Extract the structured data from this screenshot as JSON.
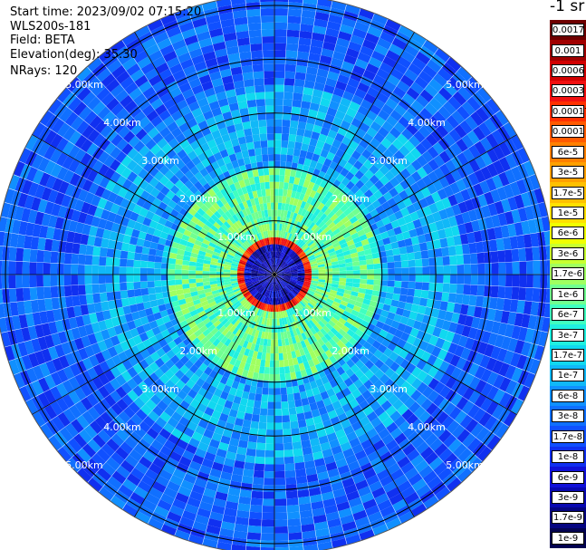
{
  "header": {
    "start_time": "Start time: 2023/09/02 07:15:20",
    "instrument": "WLS200s-181",
    "field": "Field: BETA",
    "elevation": "Elevation(deg): 35.30",
    "nrays": "NRays: 120"
  },
  "colorbar": {
    "title": "-1 sr",
    "ticks": [
      "0.0017",
      "0.001",
      "0.0006",
      "0.0003",
      "0.00017",
      "0.0001",
      "6e-5",
      "3e-5",
      "1.7e-5",
      "1e-5",
      "6e-6",
      "3e-6",
      "1.7e-6",
      "1e-6",
      "6e-7",
      "3e-7",
      "1.7e-7",
      "1e-7",
      "6e-8",
      "3e-8",
      "1.7e-8",
      "1e-8",
      "6e-9",
      "3e-9",
      "1.7e-9",
      "1e-9"
    ],
    "colors": [
      "#6e0000",
      "#a00000",
      "#d00000",
      "#f01010",
      "#ff3000",
      "#ff5a00",
      "#ff8000",
      "#ffa000",
      "#ffc000",
      "#ffe000",
      "#f0ff00",
      "#c8ff30",
      "#a0ff60",
      "#70ff90",
      "#40ffc0",
      "#20f0e0",
      "#10d8f0",
      "#10b8f8",
      "#1090ff",
      "#1070ff",
      "#1050ff",
      "#1030f0",
      "#1010d8",
      "#0808b0",
      "#040480",
      "#020250"
    ]
  },
  "chart_data": {
    "type": "heatmap",
    "title": "",
    "projection": "PPI polar (plan position indicator)",
    "field": "BETA",
    "units": "-1 sr",
    "nrays": 120,
    "elevation_deg": 35.3,
    "range_rings_km": [
      1,
      2,
      3,
      4,
      5
    ],
    "range_labels": [
      "1.00km",
      "2.00km",
      "3.00km",
      "4.00km",
      "5.00km"
    ],
    "max_range_km": 5.2,
    "color_scale": "log",
    "vmin": 1e-09,
    "vmax": 0.0017,
    "grid": true,
    "features": [
      {
        "description": "high backscatter ring",
        "range_km": [
          0.55,
          0.7
        ],
        "beta": 0.0003
      },
      {
        "description": "near-range background",
        "range_km": [
          0.7,
          2.0
        ],
        "beta": 1e-06
      },
      {
        "description": "mid-range background",
        "range_km": [
          2.0,
          3.5
        ],
        "beta": 1e-07
      },
      {
        "description": "far-range background",
        "range_km": [
          3.5,
          5.2
        ],
        "beta": 3e-08
      }
    ]
  }
}
